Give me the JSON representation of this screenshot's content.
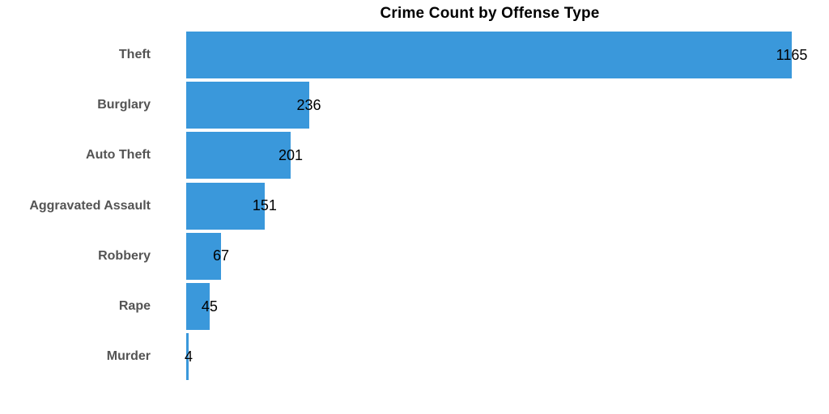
{
  "chart_data": {
    "type": "bar",
    "orientation": "horizontal",
    "title": "Crime Count by Offense Type",
    "categories": [
      "Theft",
      "Burglary",
      "Auto Theft",
      "Aggravated Assault",
      "Robbery",
      "Rape",
      "Murder"
    ],
    "values": [
      1165,
      236,
      201,
      151,
      67,
      45,
      4
    ],
    "value_labels": [
      "1165",
      "236",
      "201",
      "151",
      "67",
      "45",
      "4"
    ],
    "xlabel": "",
    "ylabel": "",
    "xlim": [
      0,
      1165
    ],
    "grid": false,
    "legend": false,
    "axes_visible": false,
    "value_label_position": "centered-on-bar-end",
    "colors": {
      "bar": "#3A98DB",
      "category_label": "#545454",
      "value_label": "#000000",
      "title": "#000000",
      "background": "#ffffff"
    }
  }
}
